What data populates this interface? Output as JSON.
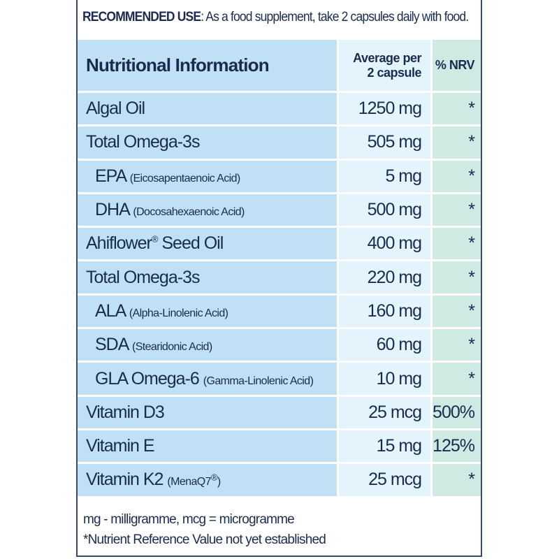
{
  "recommended_use": {
    "label": "RECOMMENDED USE",
    "text": ": As a food supplement, take 2 capsules daily with food."
  },
  "header": {
    "title": "Nutritional Information",
    "avg_line1": "Average per",
    "avg_line2": "2 capsule",
    "nrv": "% NRV"
  },
  "rows": [
    {
      "name": "Algal Oil",
      "note": "",
      "amount": "1250 mg",
      "nrv": "*"
    },
    {
      "name": "Total Omega-3s",
      "note": "",
      "amount": "505 mg",
      "nrv": "*"
    },
    {
      "name": "EPA",
      "note": "(Eicosapentaenoic Acid)",
      "amount": "5 mg",
      "nrv": "*"
    },
    {
      "name": "DHA",
      "note": "(Docosahexaenoic Acid)",
      "amount": "500 mg",
      "nrv": "*"
    },
    {
      "name": "Ahiflower",
      "reg": "®",
      "name2": " Seed Oil",
      "amount": "400 mg",
      "nrv": "*"
    },
    {
      "name": "Total Omega-3s",
      "note": "",
      "amount": "220 mg",
      "nrv": "*"
    },
    {
      "name": "ALA",
      "note": "(Alpha-Linolenic Acid)",
      "amount": "160 mg",
      "nrv": "*"
    },
    {
      "name": "SDA",
      "note": "(Stearidonic Acid)",
      "amount": "60 mg",
      "nrv": "*"
    },
    {
      "name": "GLA Omega-6",
      "note": "(Gamma-Linolenic Acid)",
      "amount": "10 mg",
      "nrv": "*"
    },
    {
      "name": "Vitamin D3",
      "note": "",
      "amount": "25 mcg",
      "nrv": "500%"
    },
    {
      "name": "Vitamin E",
      "note": "",
      "amount": "15 mg",
      "nrv": "125%"
    },
    {
      "name": "Vitamin K2",
      "note": "(MenaQ7",
      "note_reg": "®",
      "note_end": ")",
      "amount": "25 mcg",
      "nrv": "*"
    }
  ],
  "footer": {
    "units": "mg - milligramme, mcg = microgramme",
    "nrv_note": "*Nutrient Reference Value not yet established"
  }
}
